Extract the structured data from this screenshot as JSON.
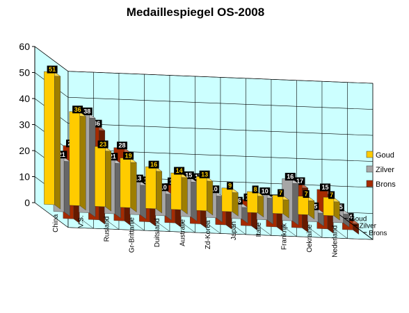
{
  "chart_data": {
    "type": "bar",
    "subtype": "3d-clustered-depth",
    "title": "Medaillespiegel OS-2008",
    "xlabel": "",
    "ylabel": "",
    "ylim": [
      0,
      60
    ],
    "yticks": [
      0,
      10,
      20,
      30,
      40,
      50,
      60
    ],
    "grid": true,
    "legend": "right",
    "categories": [
      "China",
      "V.S.",
      "Rusland",
      "Gr-Brittanie",
      "Duitsland",
      "Australie",
      "Zd-Korea",
      "Japan",
      "Italie",
      "Frankrijk",
      "Oekraine",
      "Nederland"
    ],
    "series": [
      {
        "name": "Goud",
        "color": "#FFCC00",
        "values": [
          51,
          36,
          23,
          19,
          16,
          14,
          13,
          9,
          8,
          7,
          7,
          7
        ]
      },
      {
        "name": "Zilver",
        "color": "#A6A6A6",
        "values": [
          21,
          38,
          21,
          13,
          10,
          15,
          10,
          6,
          10,
          16,
          5,
          5
        ]
      },
      {
        "name": "Brons",
        "color": "#A52A00",
        "values": [
          28,
          36,
          28,
          15,
          15,
          17,
          8,
          10,
          10,
          17,
          15,
          4
        ]
      }
    ]
  }
}
